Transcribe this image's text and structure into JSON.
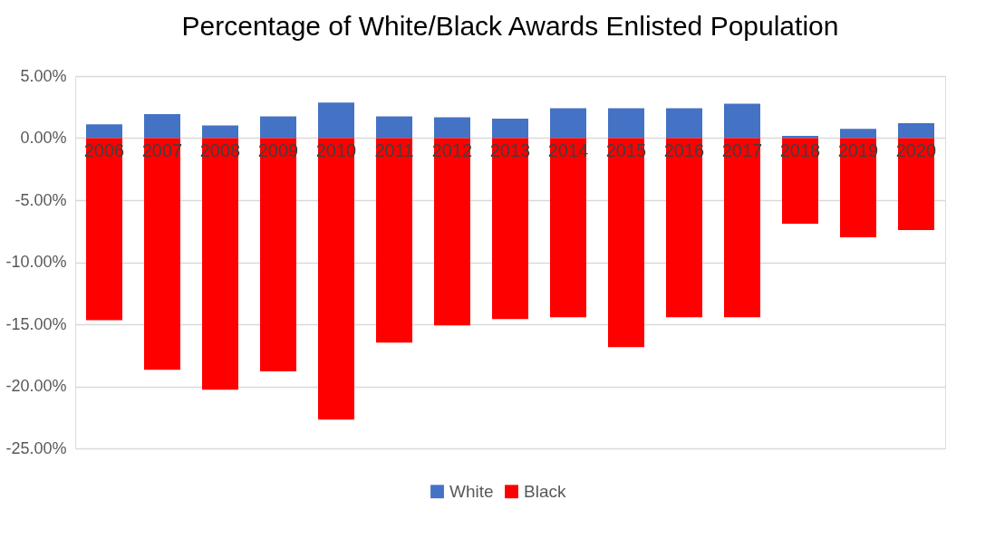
{
  "chart_data": {
    "type": "bar",
    "title": "Percentage of White/Black Awards Enlisted Population",
    "categories": [
      "2006",
      "2007",
      "2008",
      "2009",
      "2010",
      "2011",
      "2012",
      "2013",
      "2014",
      "2015",
      "2016",
      "2017",
      "2018",
      "2019",
      "2020"
    ],
    "stacked": true,
    "series": [
      {
        "name": "White",
        "color": "#4472c4",
        "values": [
          1.11,
          1.94,
          1.02,
          1.76,
          2.87,
          1.76,
          1.67,
          1.57,
          2.41,
          2.41,
          2.41,
          2.78,
          0.19,
          0.74,
          1.2
        ]
      },
      {
        "name": "Black",
        "color": "#ff0000",
        "values": [
          -14.68,
          -18.66,
          -20.28,
          -18.8,
          -22.69,
          -16.48,
          -15.09,
          -14.58,
          -14.44,
          -16.85,
          -14.44,
          -14.44,
          -6.9,
          -8.0,
          -7.4
        ]
      }
    ],
    "ylim": [
      -25,
      5
    ],
    "yticks": [
      {
        "value": -25,
        "label": "-25.00%"
      },
      {
        "value": -20,
        "label": "-20.00%"
      },
      {
        "value": -15,
        "label": "-15.00%"
      },
      {
        "value": -10,
        "label": "-10.00%"
      },
      {
        "value": -5,
        "label": "-5.00%"
      },
      {
        "value": 0,
        "label": "0.00%"
      },
      {
        "value": 5,
        "label": "5.00%"
      }
    ],
    "grid": "y",
    "legend": "bottom"
  }
}
